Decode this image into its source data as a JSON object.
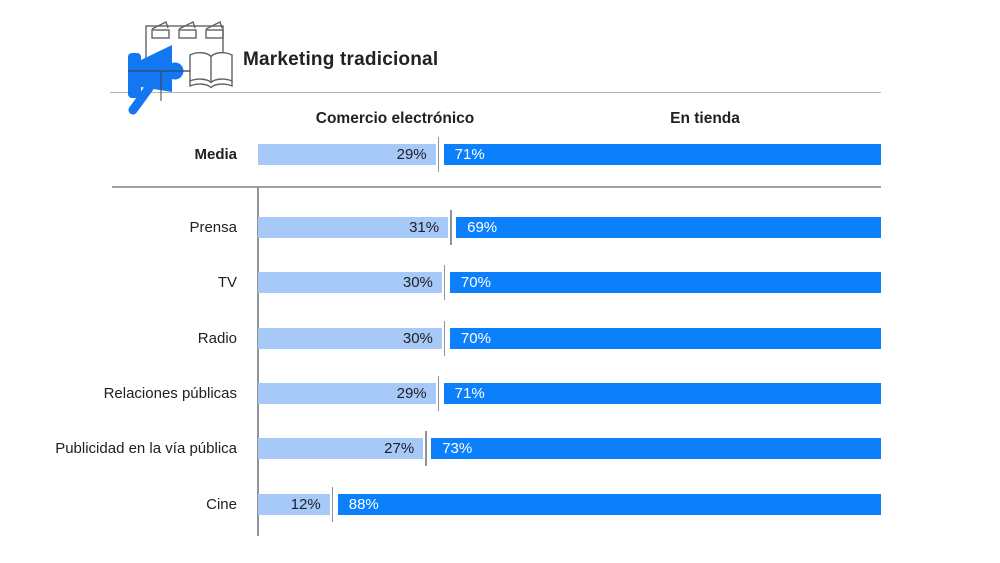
{
  "chart_data": {
    "type": "bar",
    "orientation": "horizontal",
    "stacked": true,
    "title": "Marketing tradicional",
    "value_suffix": "%",
    "xlim": [
      0,
      100
    ],
    "legend_position": "top",
    "average_row": {
      "label": "Media",
      "values": [
        29,
        71
      ]
    },
    "categories": [
      "Prensa",
      "TV",
      "Radio",
      "Relaciones públicas",
      "Publicidad en la vía pública",
      "Cine"
    ],
    "series": [
      {
        "name": "Comercio electrónico",
        "values": [
          31,
          30,
          30,
          29,
          27,
          12
        ]
      },
      {
        "name": "En tienda",
        "values": [
          69,
          70,
          70,
          71,
          73,
          88
        ]
      }
    ],
    "colors": {
      "ecommerce": "#A6C9F8",
      "in_store": "#0C80FB",
      "ecommerce_label": "#202124",
      "in_store_label": "#FFFFFF"
    }
  },
  "header_icon": {
    "parts": [
      "megaphone-icon",
      "clapperboard-icons",
      "open-book-icon"
    ],
    "megaphone_color": "#1277F0",
    "outline_color": "#5F6368"
  }
}
